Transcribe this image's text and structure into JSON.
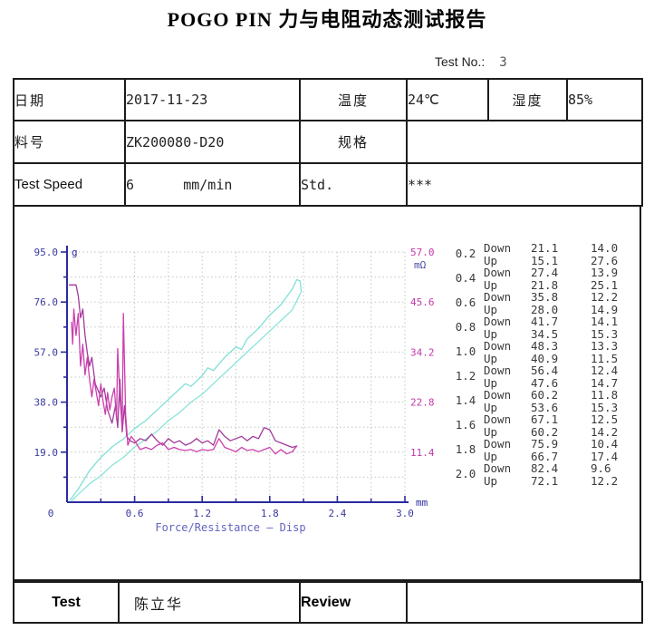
{
  "title": "POGO PIN 力与电阻动态测试报告",
  "test_no": {
    "label": "Test No.:",
    "value": "3"
  },
  "info": {
    "date_label": "日期",
    "date_value": "2017-11-23",
    "temp_label": "温度",
    "temp_value": "24℃",
    "humidity_label": "湿度",
    "humidity_value": "85%",
    "part_label": "料号",
    "part_value": "ZK200080-D20",
    "spec_label": "规格",
    "spec_value": "",
    "speed_label": "Test Speed",
    "speed_value": "6      mm/min",
    "std_label": "Std.",
    "std_value": "***"
  },
  "footer": {
    "test_label": "Test",
    "tester_name": "陈立华",
    "review_label": "Review",
    "review_value": ""
  },
  "measurements": {
    "down_label": "Down",
    "up_label": "Up",
    "columns": [
      "displacement_mm",
      "direction",
      "force_g",
      "resistance_mohm"
    ],
    "rows": [
      {
        "disp": "0.2",
        "down_force": "21.1",
        "down_res": "14.0",
        "up_force": "15.1",
        "up_res": "27.6"
      },
      {
        "disp": "0.4",
        "down_force": "27.4",
        "down_res": "13.9",
        "up_force": "21.8",
        "up_res": "25.1"
      },
      {
        "disp": "0.6",
        "down_force": "35.8",
        "down_res": "12.2",
        "up_force": "28.0",
        "up_res": "14.9"
      },
      {
        "disp": "0.8",
        "down_force": "41.7",
        "down_res": "14.1",
        "up_force": "34.5",
        "up_res": "15.3"
      },
      {
        "disp": "1.0",
        "down_force": "48.3",
        "down_res": "13.3",
        "up_force": "40.9",
        "up_res": "11.5"
      },
      {
        "disp": "1.2",
        "down_force": "56.4",
        "down_res": "12.4",
        "up_force": "47.6",
        "up_res": "14.7"
      },
      {
        "disp": "1.4",
        "down_force": "60.2",
        "down_res": "11.8",
        "up_force": "53.6",
        "up_res": "15.3"
      },
      {
        "disp": "1.6",
        "down_force": "67.1",
        "down_res": "12.5",
        "up_force": "60.2",
        "up_res": "14.2"
      },
      {
        "disp": "1.8",
        "down_force": "75.9",
        "down_res": "10.4",
        "up_force": "66.7",
        "up_res": "17.4"
      },
      {
        "disp": "2.0",
        "down_force": "82.4",
        "down_res": "9.6",
        "up_force": "72.1",
        "up_res": "12.2"
      }
    ]
  },
  "chart_data": {
    "type": "line",
    "title": "Force/Resistance — Disp",
    "x_unit": "mm",
    "x_ticks": [
      "0",
      "0.6",
      "1.2",
      "1.8",
      "2.4",
      "3.0"
    ],
    "x_range": [
      0,
      3.0
    ],
    "grid_step_x": 0.3,
    "grid_step_y": 9.5,
    "grid_on": true,
    "colors": {
      "axis": "#2b2ba0",
      "grid": "#bcc9bc",
      "caption": "#6363c0"
    },
    "left_axis": {
      "unit": "g",
      "ticks": [
        "95.0",
        "76.0",
        "57.0",
        "38.0",
        "19.0"
      ],
      "range": [
        0,
        95
      ],
      "label_color": "#3a3a9e"
    },
    "right_axis": {
      "unit": "mΩ",
      "ticks": [
        "57.0",
        "45.6",
        "34.2",
        "22.8",
        "11.4"
      ],
      "range": [
        0,
        57
      ],
      "label_color": "#c238a8"
    },
    "series": [
      {
        "name": "force-down",
        "axis": "left",
        "color": "#7fe0d6",
        "points": [
          [
            0.03,
            1
          ],
          [
            0.1,
            5
          ],
          [
            0.2,
            12
          ],
          [
            0.3,
            17
          ],
          [
            0.4,
            21
          ],
          [
            0.5,
            24
          ],
          [
            0.6,
            28
          ],
          [
            0.7,
            31
          ],
          [
            0.8,
            35
          ],
          [
            0.9,
            39
          ],
          [
            1.0,
            43
          ],
          [
            1.05,
            45
          ],
          [
            1.1,
            44
          ],
          [
            1.2,
            48
          ],
          [
            1.25,
            51
          ],
          [
            1.3,
            50
          ],
          [
            1.4,
            55
          ],
          [
            1.5,
            59
          ],
          [
            1.55,
            58
          ],
          [
            1.6,
            62
          ],
          [
            1.7,
            66
          ],
          [
            1.8,
            71
          ],
          [
            1.9,
            75
          ],
          [
            1.95,
            78
          ],
          [
            2.0,
            81
          ],
          [
            2.04,
            84.5
          ],
          [
            2.07,
            84
          ],
          [
            2.08,
            80
          ]
        ]
      },
      {
        "name": "force-up",
        "axis": "left",
        "color": "#8ae4da",
        "points": [
          [
            2.08,
            80
          ],
          [
            2.0,
            73
          ],
          [
            1.9,
            69
          ],
          [
            1.8,
            65
          ],
          [
            1.7,
            61
          ],
          [
            1.6,
            57
          ],
          [
            1.5,
            53
          ],
          [
            1.4,
            49
          ],
          [
            1.3,
            45
          ],
          [
            1.2,
            41
          ],
          [
            1.1,
            38
          ],
          [
            1.0,
            34
          ],
          [
            0.9,
            31
          ],
          [
            0.8,
            27
          ],
          [
            0.7,
            24
          ],
          [
            0.6,
            21
          ],
          [
            0.5,
            17
          ],
          [
            0.4,
            14
          ],
          [
            0.3,
            10
          ],
          [
            0.2,
            7
          ],
          [
            0.1,
            3
          ],
          [
            0.04,
            0.5
          ]
        ]
      },
      {
        "name": "resistance-down",
        "axis": "right",
        "color": "#a23a9a",
        "points": [
          [
            0.02,
            49.5
          ],
          [
            0.08,
            49.5
          ],
          [
            0.1,
            47
          ],
          [
            0.12,
            42
          ],
          [
            0.14,
            44
          ],
          [
            0.16,
            38
          ],
          [
            0.18,
            34
          ],
          [
            0.2,
            31
          ],
          [
            0.22,
            33
          ],
          [
            0.25,
            27
          ],
          [
            0.3,
            24
          ],
          [
            0.33,
            26
          ],
          [
            0.36,
            21
          ],
          [
            0.4,
            18
          ],
          [
            0.43,
            22
          ],
          [
            0.45,
            17
          ],
          [
            0.47,
            28
          ],
          [
            0.49,
            16
          ],
          [
            0.51,
            22
          ],
          [
            0.53,
            15
          ],
          [
            0.56,
            14
          ],
          [
            0.6,
            13.5
          ],
          [
            0.65,
            14.5
          ],
          [
            0.7,
            14
          ],
          [
            0.75,
            15.5
          ],
          [
            0.8,
            14
          ],
          [
            0.85,
            13
          ],
          [
            0.9,
            14.5
          ],
          [
            0.95,
            13.5
          ],
          [
            1.0,
            14
          ],
          [
            1.05,
            13
          ],
          [
            1.1,
            13.5
          ],
          [
            1.15,
            14.5
          ],
          [
            1.2,
            13.5
          ],
          [
            1.25,
            14
          ],
          [
            1.3,
            13
          ],
          [
            1.35,
            16.5
          ],
          [
            1.4,
            15
          ],
          [
            1.45,
            14
          ],
          [
            1.5,
            14.5
          ],
          [
            1.55,
            15
          ],
          [
            1.6,
            14
          ],
          [
            1.65,
            15
          ],
          [
            1.7,
            14.5
          ],
          [
            1.75,
            17
          ],
          [
            1.8,
            16.5
          ],
          [
            1.85,
            14
          ],
          [
            1.9,
            13.5
          ],
          [
            1.95,
            13
          ],
          [
            2.0,
            12.5
          ],
          [
            2.04,
            12.8
          ]
        ]
      },
      {
        "name": "resistance-up",
        "axis": "right",
        "color": "#cc3fae",
        "points": [
          [
            2.04,
            12.8
          ],
          [
            2.0,
            11.5
          ],
          [
            1.95,
            11
          ],
          [
            1.9,
            12
          ],
          [
            1.85,
            11
          ],
          [
            1.8,
            12.5
          ],
          [
            1.75,
            12
          ],
          [
            1.7,
            11.5
          ],
          [
            1.65,
            12
          ],
          [
            1.6,
            11.8
          ],
          [
            1.55,
            12.5
          ],
          [
            1.5,
            11.5
          ],
          [
            1.45,
            12
          ],
          [
            1.4,
            12.5
          ],
          [
            1.35,
            14.5
          ],
          [
            1.3,
            12
          ],
          [
            1.25,
            11.8
          ],
          [
            1.2,
            12
          ],
          [
            1.15,
            11.5
          ],
          [
            1.1,
            12
          ],
          [
            1.05,
            11.8
          ],
          [
            1.0,
            12
          ],
          [
            0.95,
            12.5
          ],
          [
            0.9,
            12
          ],
          [
            0.85,
            13.5
          ],
          [
            0.8,
            13
          ],
          [
            0.75,
            12
          ],
          [
            0.7,
            12.5
          ],
          [
            0.65,
            12
          ],
          [
            0.6,
            14
          ],
          [
            0.57,
            15
          ],
          [
            0.54,
            13
          ],
          [
            0.52,
            20
          ],
          [
            0.5,
            43
          ],
          [
            0.49,
            17
          ],
          [
            0.47,
            24
          ],
          [
            0.45,
            35
          ],
          [
            0.44,
            19
          ],
          [
            0.42,
            26
          ],
          [
            0.4,
            24
          ],
          [
            0.38,
            21
          ],
          [
            0.36,
            25
          ],
          [
            0.34,
            20
          ],
          [
            0.32,
            23
          ],
          [
            0.3,
            27
          ],
          [
            0.28,
            22
          ],
          [
            0.26,
            25
          ],
          [
            0.24,
            28
          ],
          [
            0.22,
            24
          ],
          [
            0.2,
            28
          ],
          [
            0.18,
            33
          ],
          [
            0.16,
            29
          ],
          [
            0.14,
            36
          ],
          [
            0.12,
            31
          ],
          [
            0.1,
            43
          ],
          [
            0.08,
            38
          ],
          [
            0.06,
            44
          ],
          [
            0.05,
            36
          ],
          [
            0.04,
            41
          ]
        ]
      }
    ]
  }
}
